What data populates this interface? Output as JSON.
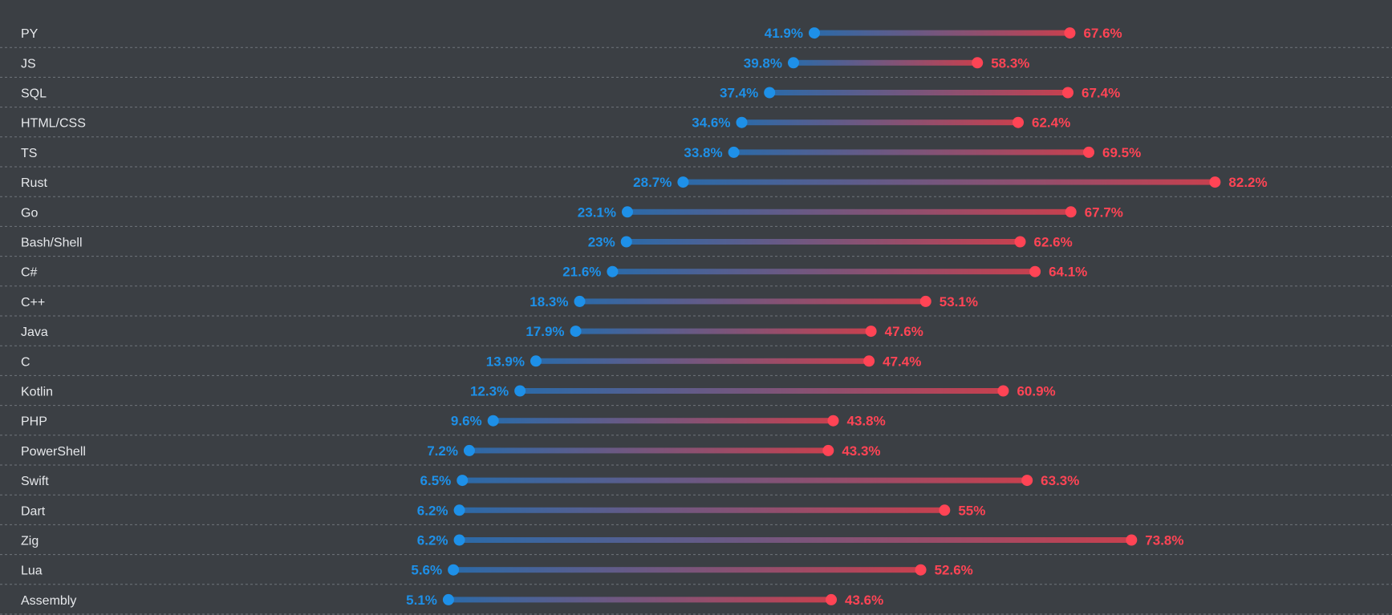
{
  "chart_data": {
    "type": "dumbbell",
    "categories": [
      "PY",
      "JS",
      "SQL",
      "HTML/CSS",
      "TS",
      "Rust",
      "Go",
      "Bash/Shell",
      "C#",
      "C++",
      "Java",
      "C",
      "Kotlin",
      "PHP",
      "PowerShell",
      "Swift",
      "Dart",
      "Zig",
      "Lua",
      "Assembly"
    ],
    "series": [
      {
        "color": "#1e90e8",
        "values": [
          41.9,
          39.8,
          37.4,
          34.6,
          33.8,
          28.7,
          23.1,
          23,
          21.6,
          18.3,
          17.9,
          13.9,
          12.3,
          9.6,
          7.2,
          6.5,
          6.2,
          6.2,
          5.6,
          5.1
        ],
        "labels": [
          "41.9%",
          "39.8%",
          "37.4%",
          "34.6%",
          "33.8%",
          "28.7%",
          "23.1%",
          "23%",
          "21.6%",
          "18.3%",
          "17.9%",
          "13.9%",
          "12.3%",
          "9.6%",
          "7.2%",
          "6.5%",
          "6.2%",
          "6.2%",
          "5.6%",
          "5.1%"
        ]
      },
      {
        "color": "#ff4455",
        "values": [
          67.6,
          58.3,
          67.4,
          62.4,
          69.5,
          82.2,
          67.7,
          62.6,
          64.1,
          53.1,
          47.6,
          47.4,
          60.9,
          43.8,
          43.3,
          63.3,
          55,
          73.8,
          52.6,
          43.6
        ],
        "labels": [
          "67.6%",
          "58.3%",
          "67.4%",
          "62.4%",
          "69.5%",
          "82.2%",
          "67.7%",
          "62.6%",
          "64.1%",
          "53.1%",
          "47.6%",
          "47.4%",
          "60.9%",
          "43.8%",
          "43.3%",
          "63.3%",
          "55%",
          "73.8%",
          "52.6%",
          "43.6%"
        ]
      }
    ],
    "xlim": [
      -40,
      100
    ],
    "grid": "dashed horizontal row separators",
    "legend": "none",
    "connector_gradient": [
      "#2b6aa8",
      "#c8404e"
    ],
    "background": "#3b3f44"
  }
}
